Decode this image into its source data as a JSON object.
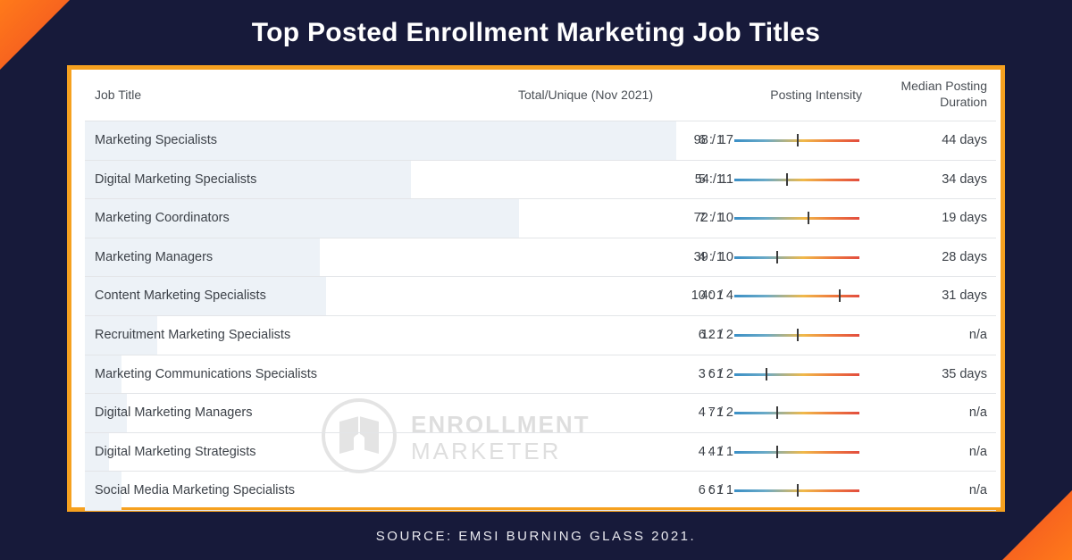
{
  "title": "Top Posted Enrollment Marketing Job Titles",
  "source": "SOURCE: EMSI BURNING GLASS 2021.",
  "watermark": {
    "line1": "ENROLLMENT",
    "line2": "MARKETER"
  },
  "colors": {
    "background": "#171a3a",
    "frame": "#f6a11f",
    "accent": "#f04e23",
    "row_highlight": "#edf2f7"
  },
  "chart_data": {
    "type": "table",
    "columns": [
      "Job Title",
      "Total/Unique (Nov 2021)",
      "Posting Intensity",
      "Median Posting Duration"
    ],
    "rows": [
      {
        "title": "Marketing Specialists",
        "total": 98,
        "unique": 17,
        "total_unique": "98 / 17",
        "intensity": "6 : 1",
        "intensity_value": 6,
        "median": "44 days"
      },
      {
        "title": "Digital Marketing Specialists",
        "total": 54,
        "unique": 11,
        "total_unique": "54 / 11",
        "intensity": "5 : 1",
        "intensity_value": 5,
        "median": "34 days"
      },
      {
        "title": "Marketing Coordinators",
        "total": 72,
        "unique": 10,
        "total_unique": "72 / 10",
        "intensity": "7 : 1",
        "intensity_value": 7,
        "median": "19 days"
      },
      {
        "title": "Marketing Managers",
        "total": 39,
        "unique": 10,
        "total_unique": "39 / 10",
        "intensity": "4 : 1",
        "intensity_value": 4,
        "median": "28 days"
      },
      {
        "title": "Content Marketing Specialists",
        "total": 40,
        "unique": 4,
        "total_unique": "40 / 4",
        "intensity": "10 : 1",
        "intensity_value": 10,
        "median": "31 days"
      },
      {
        "title": "Recruitment Marketing Specialists",
        "total": 12,
        "unique": 2,
        "total_unique": "12 / 2",
        "intensity": "6 : 1",
        "intensity_value": 6,
        "median": "n/a"
      },
      {
        "title": "Marketing Communications Specialists",
        "total": 6,
        "unique": 2,
        "total_unique": "6 / 2",
        "intensity": "3 : 1",
        "intensity_value": 3,
        "median": "35 days"
      },
      {
        "title": "Digital Marketing Managers",
        "total": 7,
        "unique": 2,
        "total_unique": "7 / 2",
        "intensity": "4 : 1",
        "intensity_value": 4,
        "median": "n/a"
      },
      {
        "title": "Digital Marketing Strategists",
        "total": 4,
        "unique": 1,
        "total_unique": "4 / 1",
        "intensity": "4 : 1",
        "intensity_value": 4,
        "median": "n/a"
      },
      {
        "title": "Social Media Marketing Specialists",
        "total": 6,
        "unique": 1,
        "total_unique": "6 / 1",
        "intensity": "6 : 1",
        "intensity_value": 6,
        "median": "n/a"
      }
    ]
  }
}
